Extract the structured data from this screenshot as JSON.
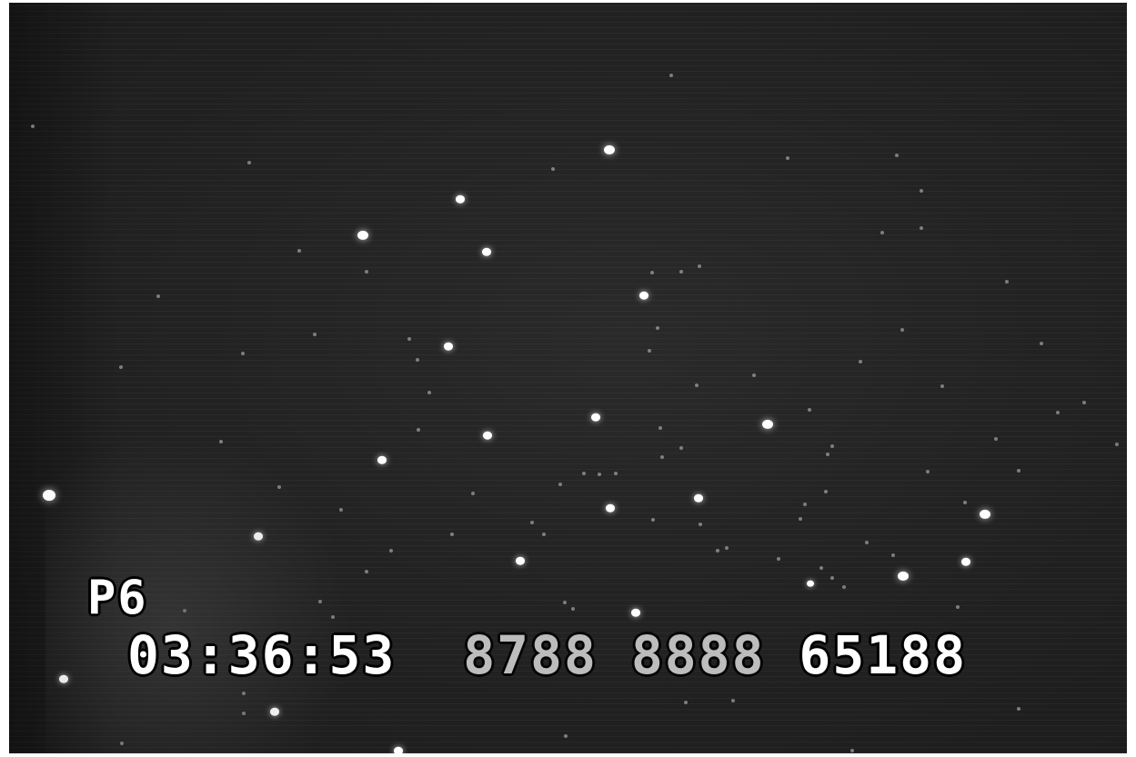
{
  "video": {
    "channel_label": "P6",
    "timecode": "03:36:53",
    "field_a": "8788",
    "field_b": "8888",
    "field_c": "65188"
  },
  "colors": {
    "background": "#242424",
    "stars": "#ffffff",
    "overlay_text": "#ffffff",
    "border": "#ffffff"
  }
}
